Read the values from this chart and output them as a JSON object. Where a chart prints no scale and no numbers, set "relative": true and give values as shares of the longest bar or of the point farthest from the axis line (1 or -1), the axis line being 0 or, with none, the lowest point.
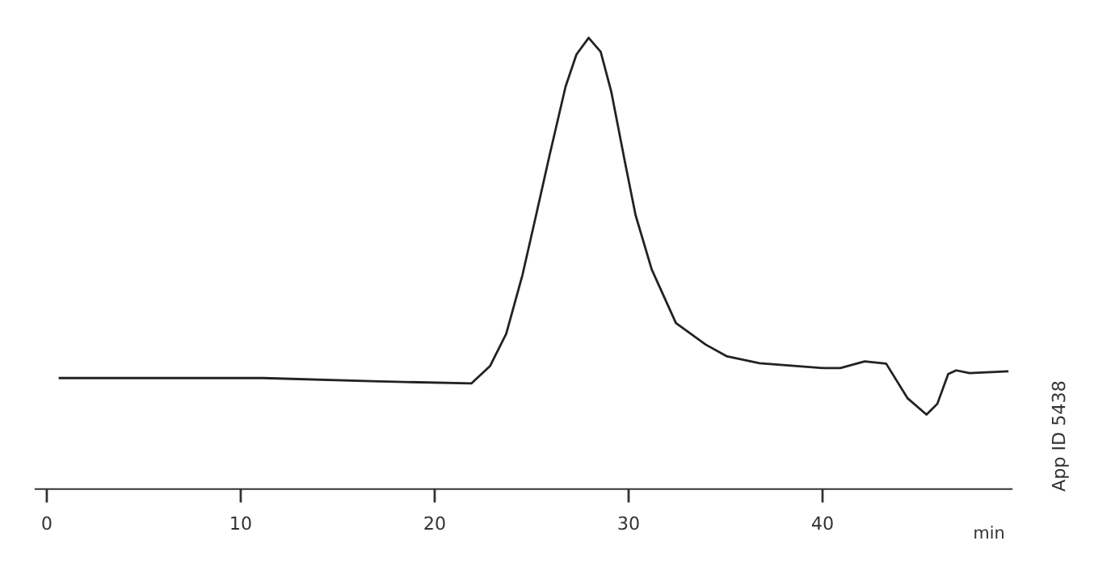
{
  "chart_data": {
    "type": "line",
    "relative": true,
    "xlabel": "min",
    "xlim": [
      -0.58,
      49.75
    ],
    "xticks": [
      0,
      10,
      20,
      30,
      40
    ],
    "x": [
      0.67,
      11.17,
      16.75,
      21.89,
      22.86,
      23.69,
      24.53,
      25.23,
      25.92,
      26.75,
      27.31,
      27.94,
      28.56,
      29.11,
      29.81,
      30.36,
      31.19,
      32.44,
      33.98,
      35.08,
      36.75,
      40.08,
      40.92,
      42.17,
      43.28,
      44.39,
      45.36,
      45.92,
      46.48,
      46.89,
      47.58,
      49.53
    ],
    "series": [
      {
        "color": "#222222",
        "values": [
          0.246,
          0.246,
          0.239,
          0.234,
          0.273,
          0.344,
          0.475,
          0.607,
          0.739,
          0.892,
          0.963,
          1.0,
          0.969,
          0.88,
          0.725,
          0.607,
          0.487,
          0.368,
          0.32,
          0.294,
          0.279,
          0.268,
          0.268,
          0.283,
          0.278,
          0.201,
          0.165,
          0.189,
          0.255,
          0.263,
          0.257,
          0.261
        ]
      }
    ],
    "grid": false,
    "legend": false,
    "annotations": [
      "App ID 5438"
    ]
  }
}
